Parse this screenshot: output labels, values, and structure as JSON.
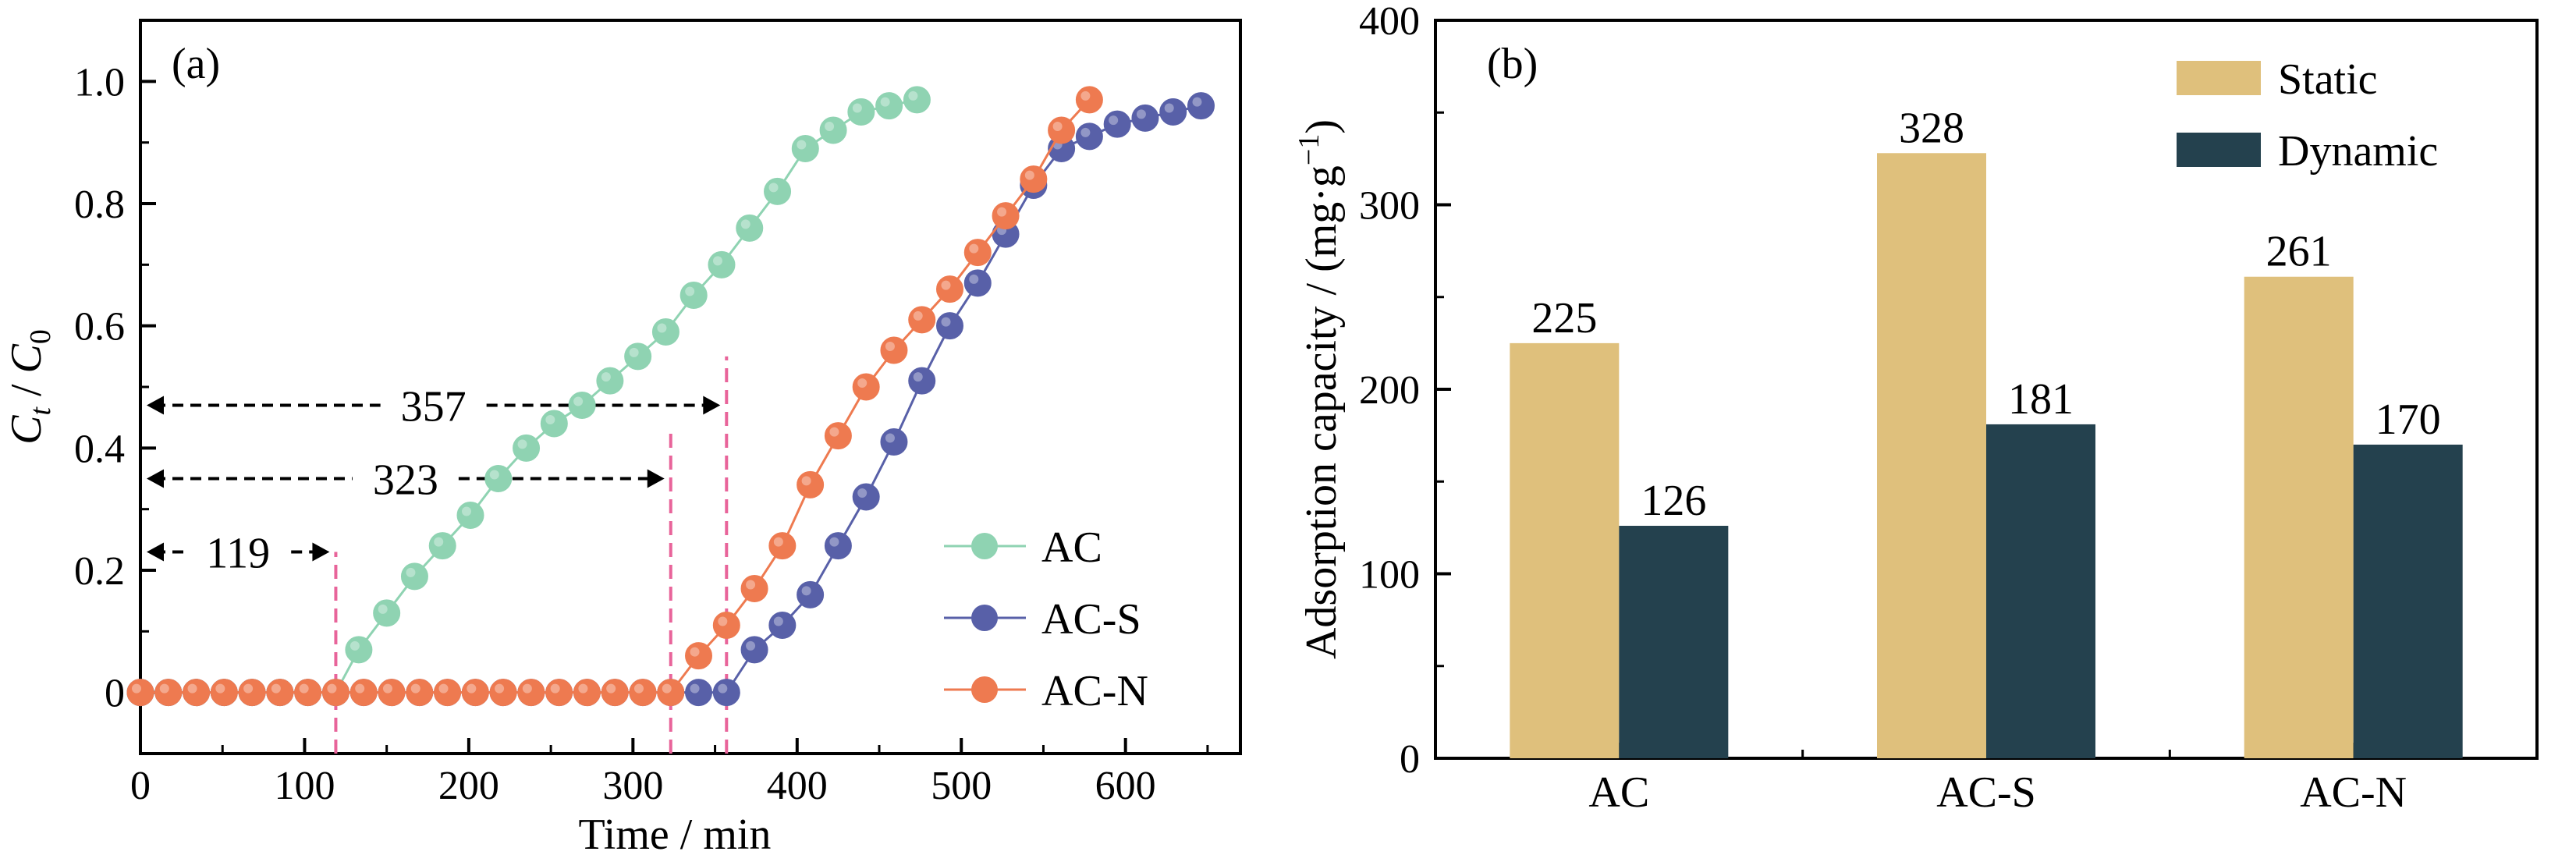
{
  "chart_data": [
    {
      "panel_label": "(a)",
      "type": "scatter",
      "xlabel": "Time / min",
      "ylabel": {
        "base1": "C",
        "sub1": "t",
        "sep": " / ",
        "base2": "C",
        "sub2": "0"
      },
      "xlim": [
        0,
        670
      ],
      "ylim": [
        -0.1,
        1.1
      ],
      "xticks": [
        0,
        100,
        200,
        300,
        400,
        500,
        600
      ],
      "xtick_labels": [
        "0",
        "100",
        "200",
        "300",
        "400",
        "500",
        "600"
      ],
      "yticks": [
        0,
        0.2,
        0.4,
        0.6,
        0.8,
        1.0
      ],
      "ytick_labels": [
        "0",
        "0.2",
        "0.4",
        "0.6",
        "0.8",
        "1.0"
      ],
      "legend_position": "bottom-right",
      "colors": {
        "AC": "#8FD3B2",
        "AC-S": "#5860A8",
        "AC-N": "#EE7A50",
        "guide": "#E8649A"
      },
      "series": [
        {
          "name": "AC",
          "x": [
            0,
            17,
            34,
            51,
            68,
            85,
            102,
            119,
            133,
            150,
            167,
            184,
            201,
            218,
            235,
            252,
            269,
            286,
            303,
            320,
            337,
            354,
            371,
            388,
            405,
            422,
            439,
            456,
            473
          ],
          "y": [
            0,
            0,
            0,
            0,
            0,
            0,
            0,
            0,
            0.07,
            0.13,
            0.19,
            0.24,
            0.29,
            0.35,
            0.4,
            0.44,
            0.47,
            0.51,
            0.55,
            0.59,
            0.65,
            0.7,
            0.76,
            0.82,
            0.89,
            0.92,
            0.95,
            0.96,
            0.97
          ]
        },
        {
          "name": "AC-S",
          "x": [
            0,
            17,
            34,
            51,
            68,
            85,
            102,
            119,
            136,
            153,
            170,
            187,
            204,
            221,
            238,
            255,
            272,
            289,
            306,
            323,
            340,
            357,
            374,
            391,
            408,
            425,
            442,
            459,
            476,
            493,
            510,
            527,
            544,
            561,
            578,
            595,
            612,
            629,
            646
          ],
          "y": [
            0,
            0,
            0,
            0,
            0,
            0,
            0,
            0,
            0,
            0,
            0,
            0,
            0,
            0,
            0,
            0,
            0,
            0,
            0,
            0,
            0,
            0,
            0.07,
            0.11,
            0.16,
            0.24,
            0.32,
            0.41,
            0.51,
            0.6,
            0.67,
            0.75,
            0.83,
            0.89,
            0.91,
            0.93,
            0.94,
            0.95,
            0.96
          ]
        },
        {
          "name": "AC-N",
          "x": [
            0,
            17,
            34,
            51,
            68,
            85,
            102,
            119,
            136,
            153,
            170,
            187,
            204,
            221,
            238,
            255,
            272,
            289,
            306,
            323,
            340,
            357,
            374,
            391,
            408,
            425,
            442,
            459,
            476,
            493,
            510,
            527,
            544,
            561,
            578
          ],
          "y": [
            0,
            0,
            0,
            0,
            0,
            0,
            0,
            0,
            0,
            0,
            0,
            0,
            0,
            0,
            0,
            0,
            0,
            0,
            0,
            0,
            0.06,
            0.11,
            0.17,
            0.24,
            0.34,
            0.42,
            0.5,
            0.56,
            0.61,
            0.66,
            0.72,
            0.78,
            0.84,
            0.92,
            0.97
          ]
        }
      ],
      "breakthrough_lines": [
        119,
        323,
        357
      ],
      "annotations": [
        {
          "label": "119",
          "from": 0,
          "to": 119,
          "y": 0.23
        },
        {
          "label": "323",
          "from": 0,
          "to": 323,
          "y": 0.35
        },
        {
          "label": "357",
          "from": 0,
          "to": 357,
          "y": 0.47
        }
      ]
    },
    {
      "panel_label": "(b)",
      "type": "bar",
      "xlabel": "",
      "ylabel": {
        "text": "Adsorption capacity / (mg·g",
        "sup": "−1",
        "end": ")"
      },
      "categories": [
        "AC",
        "AC-S",
        "AC-N"
      ],
      "ylim": [
        0,
        400
      ],
      "yticks": [
        0,
        100,
        200,
        300,
        400
      ],
      "ytick_labels": [
        "0",
        "100",
        "200",
        "300",
        "400"
      ],
      "legend_position": "top-right",
      "series": [
        {
          "name": "Static",
          "color": "#DFC07C",
          "values": [
            225,
            328,
            261
          ],
          "labels": [
            "225",
            "328",
            "261"
          ]
        },
        {
          "name": "Dynamic",
          "color": "#24414E",
          "values": [
            126,
            181,
            170
          ],
          "labels": [
            "126",
            "181",
            "170"
          ]
        }
      ]
    }
  ]
}
